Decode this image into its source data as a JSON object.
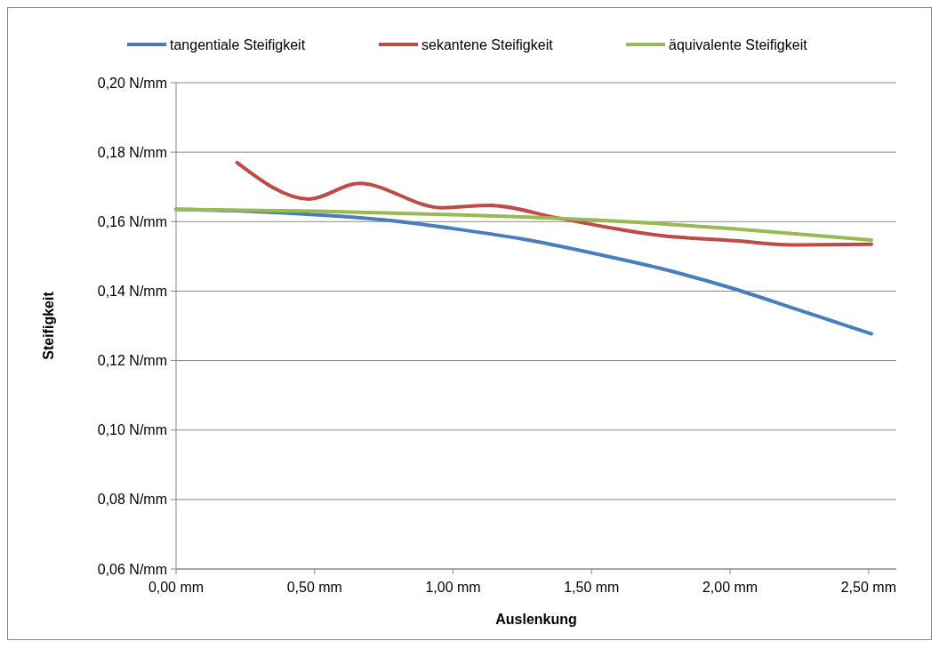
{
  "chart_data": {
    "type": "line",
    "xlabel": "Auslenkung",
    "ylabel": "Steifigkeit",
    "xlim": [
      0,
      2.6
    ],
    "ylim": [
      0.06,
      0.2
    ],
    "xticks": [
      {
        "value": 0,
        "label": "0,00 mm"
      },
      {
        "value": 0.5,
        "label": "0,50 mm"
      },
      {
        "value": 1,
        "label": "1,00 mm"
      },
      {
        "value": 1.5,
        "label": "1,50 mm"
      },
      {
        "value": 2,
        "label": "2,00 mm"
      },
      {
        "value": 2.5,
        "label": "2,50 mm"
      }
    ],
    "yticks": [
      {
        "value": 0.06,
        "label": "0,06 N/mm"
      },
      {
        "value": 0.08,
        "label": "0,08 N/mm"
      },
      {
        "value": 0.1,
        "label": "0,10 N/mm"
      },
      {
        "value": 0.12,
        "label": "0,12 N/mm"
      },
      {
        "value": 0.14,
        "label": "0,14 N/mm"
      },
      {
        "value": 0.16,
        "label": "0,16 N/mm"
      },
      {
        "value": 0.18,
        "label": "0,18 N/mm"
      },
      {
        "value": 0.2,
        "label": "0,20 N/mm"
      }
    ],
    "grid": "y",
    "legend": "top",
    "marker": "none",
    "line_style": "solid",
    "series": [
      {
        "name": "tangentiale Steifigkeit",
        "color": "#4a7ebb",
        "x": [
          0,
          0.25,
          0.5,
          0.75,
          1,
          1.25,
          1.5,
          1.75,
          2,
          2.25,
          2.51
        ],
        "values": [
          0.1635,
          0.163,
          0.162,
          0.1605,
          0.158,
          0.155,
          0.151,
          0.1465,
          0.141,
          0.1345,
          0.1277
        ]
      },
      {
        "name": "sekantene Steifigkeit",
        "color": "#be4b48",
        "x": [
          0.22,
          0.48,
          0.66,
          0.96,
          1.13,
          1.38,
          1.75,
          2.02,
          2.22,
          2.51
        ],
        "values": [
          0.177,
          0.1665,
          0.171,
          0.164,
          0.1647,
          0.161,
          0.156,
          0.1545,
          0.1533,
          0.1535
        ]
      },
      {
        "name": "äquivalente Steifigkeit",
        "color": "#98b954",
        "x": [
          0,
          0.5,
          1,
          1.5,
          2,
          2.51
        ],
        "values": [
          0.1635,
          0.163,
          0.162,
          0.1605,
          0.158,
          0.1547
        ]
      }
    ]
  }
}
